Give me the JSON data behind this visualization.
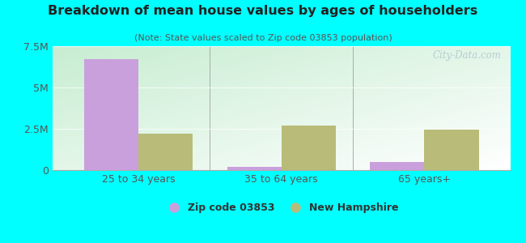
{
  "title": "Breakdown of mean house values by ages of householders",
  "subtitle": "(Note: State values scaled to Zip code 03853 population)",
  "categories": [
    "25 to 34 years",
    "35 to 64 years",
    "65 years+"
  ],
  "zip_values": [
    6700000,
    200000,
    500000
  ],
  "state_values": [
    2200000,
    2700000,
    2450000
  ],
  "ylim": [
    0,
    7500000
  ],
  "yticks": [
    0,
    2500000,
    5000000,
    7500000
  ],
  "ytick_labels": [
    "0",
    "2.5M",
    "5M",
    "7.5M"
  ],
  "zip_color": "#c9a0dc",
  "state_color": "#b8bc78",
  "background_outer": "#00ffff",
  "background_inner_top_left": "#c8ecd0",
  "background_inner_bottom_right": "#ffffff",
  "title_color": "#222222",
  "subtitle_color": "#555555",
  "axis_color": "#aaaaaa",
  "tick_color": "#555555",
  "legend_zip_label": "Zip code 03853",
  "legend_state_label": "New Hampshire",
  "watermark": "City-Data.com",
  "bar_width": 0.38
}
